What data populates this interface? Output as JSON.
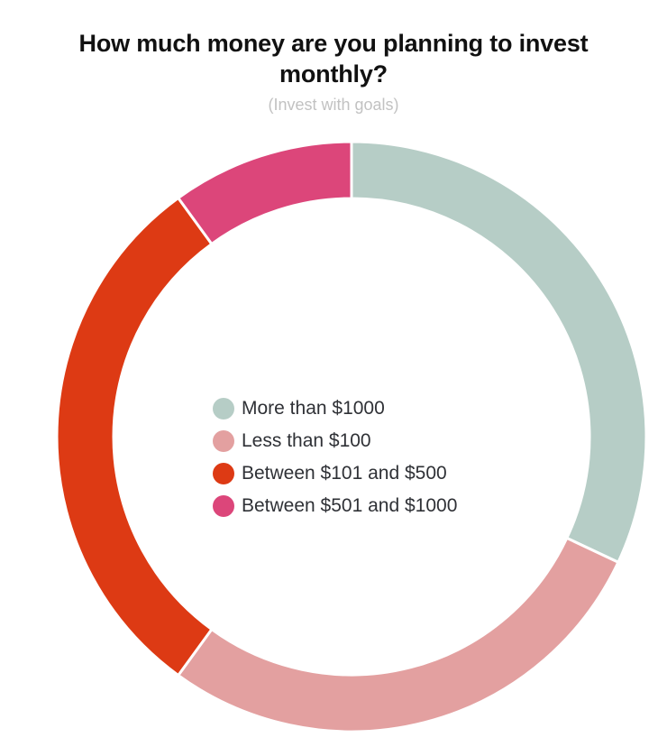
{
  "chart_data": {
    "type": "pie",
    "title": "How much money are you planning to invest monthly?",
    "subtitle": "(Invest with goals)",
    "categories": [
      "More than $1000",
      "Less than $100",
      "Between $101 and $500",
      "Between $501 and $1000"
    ],
    "values": [
      32,
      28,
      30,
      10
    ],
    "colors": [
      "#b6cdc6",
      "#e3a0a0",
      "#dd3a14",
      "#dc467a"
    ],
    "legend_position": "center",
    "donut": true
  }
}
